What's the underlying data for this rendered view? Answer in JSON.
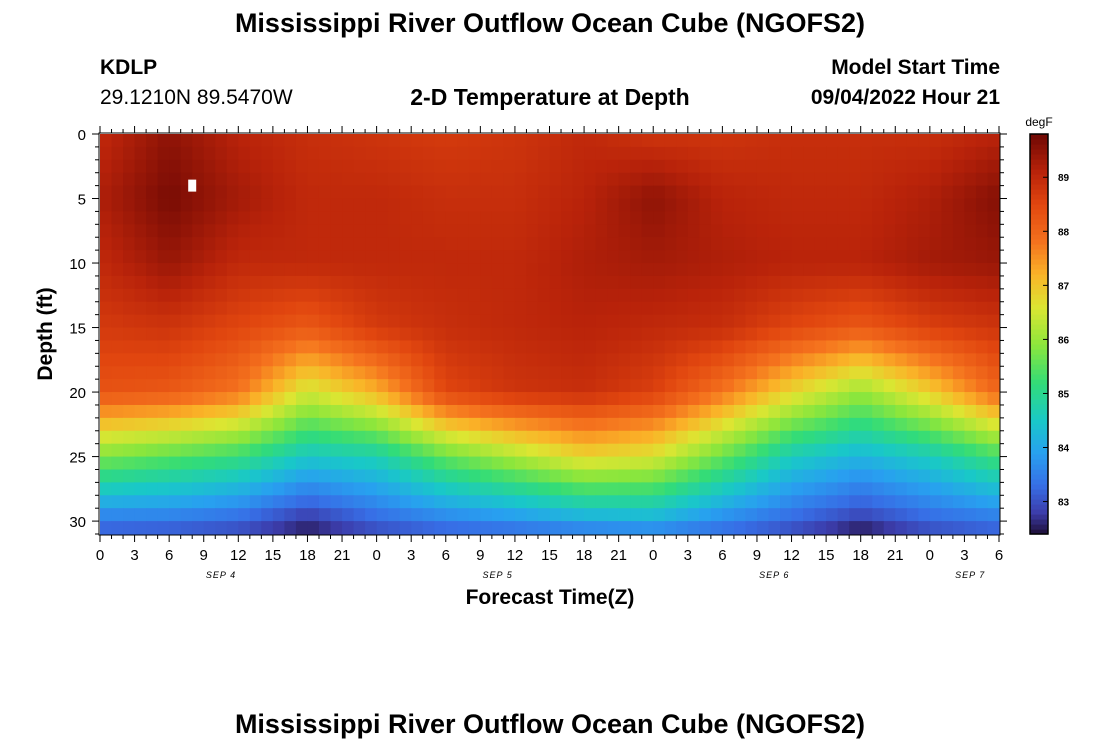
{
  "page": {
    "title": "Mississippi River Outflow Ocean Cube (NGOFS2)",
    "station_id": "KDLP",
    "station_coords": "29.1210N  89.5470W",
    "subtitle": "2-D Temperature at Depth",
    "model_start_label": "Model Start Time",
    "model_start_value": "09/04/2022 Hour 21",
    "footer_title": "Mississippi River Outflow Ocean Cube (NGOFS2)"
  },
  "chart_data": {
    "type": "heatmap",
    "title": "2-D Temperature at Depth",
    "xlabel": "Forecast Time(Z)",
    "ylabel": "Depth (ft)",
    "x_tick_labels": [
      "0",
      "3",
      "6",
      "9",
      "12",
      "15",
      "18",
      "21",
      "0",
      "3",
      "6",
      "9",
      "12",
      "15",
      "18",
      "21",
      "0",
      "3",
      "6",
      "9",
      "12",
      "15",
      "18",
      "21",
      "0",
      "3",
      "6"
    ],
    "x_tick_hours": [
      0,
      3,
      6,
      9,
      12,
      15,
      18,
      21,
      24,
      27,
      30,
      33,
      36,
      39,
      42,
      45,
      48,
      51,
      54,
      57,
      60,
      63,
      66,
      69,
      72,
      75,
      78
    ],
    "date_labels": [
      {
        "text": "SEP 4",
        "hour": 10.5
      },
      {
        "text": "SEP 5",
        "hour": 34.5
      },
      {
        "text": "SEP 6",
        "hour": 58.5
      },
      {
        "text": "SEP 7",
        "hour": 75.5
      }
    ],
    "xlim": [
      0,
      78
    ],
    "ylim": [
      0,
      31
    ],
    "y_ticks": [
      0,
      5,
      10,
      15,
      20,
      25,
      30
    ],
    "grid": false,
    "colorbar": {
      "unit": "degF",
      "ticks": [
        83,
        84,
        85,
        86,
        87,
        88,
        89
      ],
      "range": [
        82.4,
        89.8
      ]
    },
    "hours": [
      0,
      6,
      12,
      18,
      24,
      30,
      36,
      42,
      48,
      54,
      60,
      66,
      72,
      78
    ],
    "depths_ft": [
      0,
      5,
      10,
      15,
      20,
      25,
      30,
      31
    ],
    "temperature_degF": [
      [
        89.0,
        89.5,
        89.1,
        88.9,
        88.8,
        88.7,
        88.8,
        89.0,
        88.8,
        88.8,
        88.9,
        88.9,
        88.9,
        89.1
      ],
      [
        89.2,
        89.7,
        89.3,
        89.0,
        89.0,
        88.9,
        88.9,
        89.1,
        89.5,
        89.1,
        89.0,
        89.0,
        89.2,
        89.6
      ],
      [
        89.0,
        89.4,
        89.0,
        89.0,
        89.0,
        89.0,
        89.0,
        89.2,
        89.3,
        89.2,
        89.1,
        89.1,
        89.3,
        89.4
      ],
      [
        88.7,
        88.8,
        88.5,
        88.2,
        88.7,
        88.9,
        89.0,
        89.1,
        89.0,
        88.9,
        88.5,
        88.2,
        88.6,
        88.8
      ],
      [
        88.3,
        88.2,
        87.8,
        86.5,
        87.2,
        88.5,
        88.8,
        88.9,
        88.6,
        87.8,
        86.8,
        86.0,
        86.9,
        88.0
      ],
      [
        85.8,
        85.5,
        85.2,
        84.5,
        84.7,
        85.6,
        86.2,
        86.8,
        86.6,
        85.6,
        84.6,
        84.2,
        84.6,
        85.3
      ],
      [
        83.4,
        83.4,
        83.2,
        82.7,
        83.2,
        83.5,
        83.7,
        84.0,
        84.1,
        83.6,
        83.2,
        82.8,
        83.2,
        83.4
      ],
      [
        83.1,
        83.0,
        82.9,
        82.5,
        82.9,
        83.1,
        83.2,
        83.3,
        83.4,
        83.2,
        82.9,
        82.4,
        82.9,
        83.1
      ]
    ],
    "missing_value_markers": [
      {
        "hour": 8.0,
        "depth_ft": 4.0
      }
    ]
  }
}
